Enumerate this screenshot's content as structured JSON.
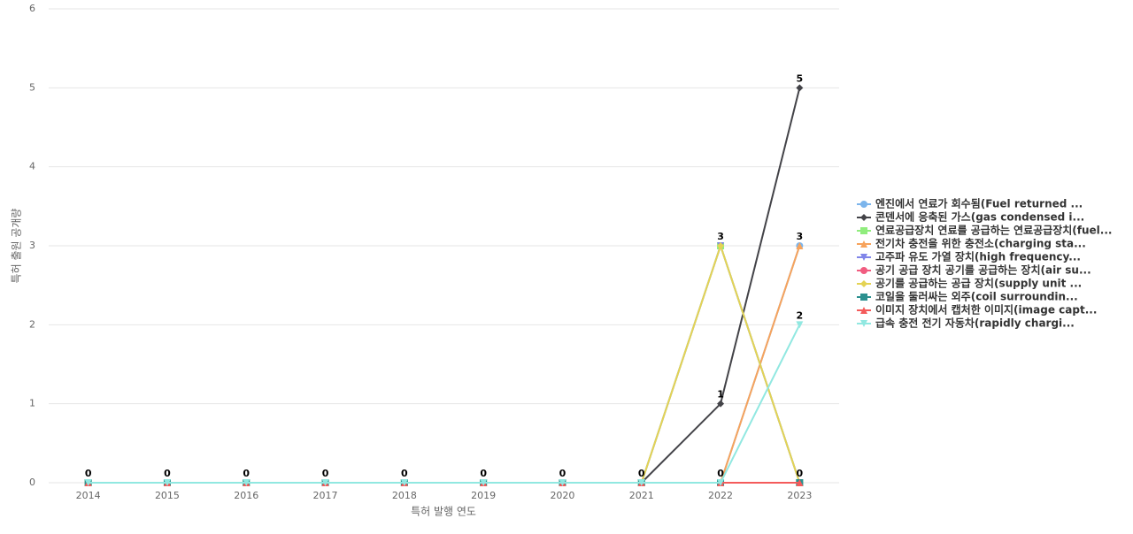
{
  "chart_data": {
    "type": "line",
    "x_label": "특허 발행 연도",
    "y_label": "특허 출원 공개량",
    "categories": [
      "2014",
      "2015",
      "2016",
      "2017",
      "2018",
      "2019",
      "2020",
      "2021",
      "2022",
      "2023"
    ],
    "ylim": [
      0,
      6
    ],
    "yticks": [
      0,
      1,
      2,
      3,
      4,
      5,
      6
    ],
    "grid": true,
    "legend": "right",
    "series": [
      {
        "name": "엔진에서 연료가 회수됨(Fuel returned ...",
        "color": "#7cb5ec",
        "values": [
          0,
          0,
          0,
          0,
          0,
          0,
          0,
          0,
          0,
          3
        ]
      },
      {
        "name": "콘덴서에 응축된 가스(gas condensed i...",
        "color": "#434348",
        "values": [
          0,
          0,
          0,
          0,
          0,
          0,
          0,
          0,
          1,
          5
        ]
      },
      {
        "name": "연료공급장치 연료를 공급하는 연료공급장치(fuel...",
        "color": "#90ed7d",
        "values": [
          0,
          0,
          0,
          0,
          0,
          0,
          0,
          0,
          3,
          0
        ]
      },
      {
        "name": "전기차 충전을 위한 충전소(charging sta...",
        "color": "#f7a35c",
        "values": [
          0,
          0,
          0,
          0,
          0,
          0,
          0,
          0,
          0,
          3
        ]
      },
      {
        "name": "고주파 유도 가열 장치(high frequency...",
        "color": "#8085e9",
        "values": [
          0,
          0,
          0,
          0,
          0,
          0,
          0,
          0,
          3,
          0
        ]
      },
      {
        "name": "공기 공급 장치 공기를 공급하는 장치(air su...",
        "color": "#f15c80",
        "values": [
          0,
          0,
          0,
          0,
          0,
          0,
          0,
          0,
          0,
          0
        ]
      },
      {
        "name": "공기를 공급하는 공급 장치(supply unit ...",
        "color": "#e4d354",
        "values": [
          0,
          0,
          0,
          0,
          0,
          0,
          0,
          0,
          3,
          0
        ]
      },
      {
        "name": "코일을 둘러싸는 외주(coil surroundin...",
        "color": "#2b908f",
        "values": [
          0,
          0,
          0,
          0,
          0,
          0,
          0,
          0,
          0,
          0
        ]
      },
      {
        "name": "이미지 장치에서 캡처한 이미지(image capt...",
        "color": "#f45b5b",
        "values": [
          0,
          0,
          0,
          0,
          0,
          0,
          0,
          0,
          0,
          0
        ]
      },
      {
        "name": "급속 충전 전기 자동차(rapidly chargi...",
        "color": "#91e8e1",
        "values": [
          0,
          0,
          0,
          0,
          0,
          0,
          0,
          0,
          0,
          2
        ]
      }
    ]
  }
}
